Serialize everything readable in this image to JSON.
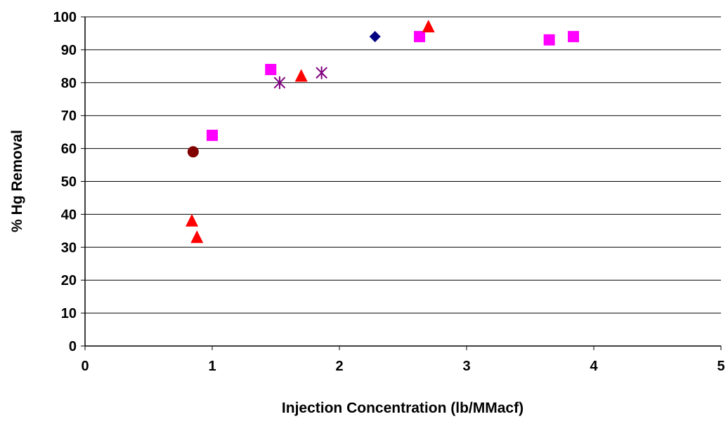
{
  "chart_data": {
    "type": "scatter",
    "title": "",
    "xlabel": "Injection Concentration (lb/MMacf)",
    "ylabel": "% Hg Removal",
    "xlim": [
      0,
      5
    ],
    "ylim": [
      0,
      100
    ],
    "x_ticks": [
      "0",
      "1",
      "2",
      "3",
      "4",
      "5"
    ],
    "y_ticks": [
      "0",
      "10",
      "20",
      "30",
      "40",
      "50",
      "60",
      "70",
      "80",
      "90",
      "100"
    ],
    "grid": "horizontal",
    "legend": "none",
    "series": [
      {
        "marker": "diamond",
        "color": "#000080",
        "points": [
          {
            "x": 2.28,
            "y": 94
          }
        ]
      },
      {
        "marker": "square",
        "color": "#FF00FF",
        "points": [
          {
            "x": 1.0,
            "y": 64
          },
          {
            "x": 1.46,
            "y": 84
          },
          {
            "x": 2.63,
            "y": 94
          },
          {
            "x": 3.65,
            "y": 93
          },
          {
            "x": 3.84,
            "y": 94
          }
        ]
      },
      {
        "marker": "triangle",
        "color": "#FF0000",
        "points": [
          {
            "x": 0.84,
            "y": 38
          },
          {
            "x": 0.88,
            "y": 33
          },
          {
            "x": 1.7,
            "y": 82
          },
          {
            "x": 2.7,
            "y": 97
          }
        ]
      },
      {
        "marker": "asterisk",
        "color": "#800080",
        "points": [
          {
            "x": 1.53,
            "y": 80
          },
          {
            "x": 1.86,
            "y": 83
          }
        ]
      },
      {
        "marker": "circle",
        "color": "#800000",
        "points": [
          {
            "x": 0.85,
            "y": 59
          }
        ]
      }
    ]
  }
}
